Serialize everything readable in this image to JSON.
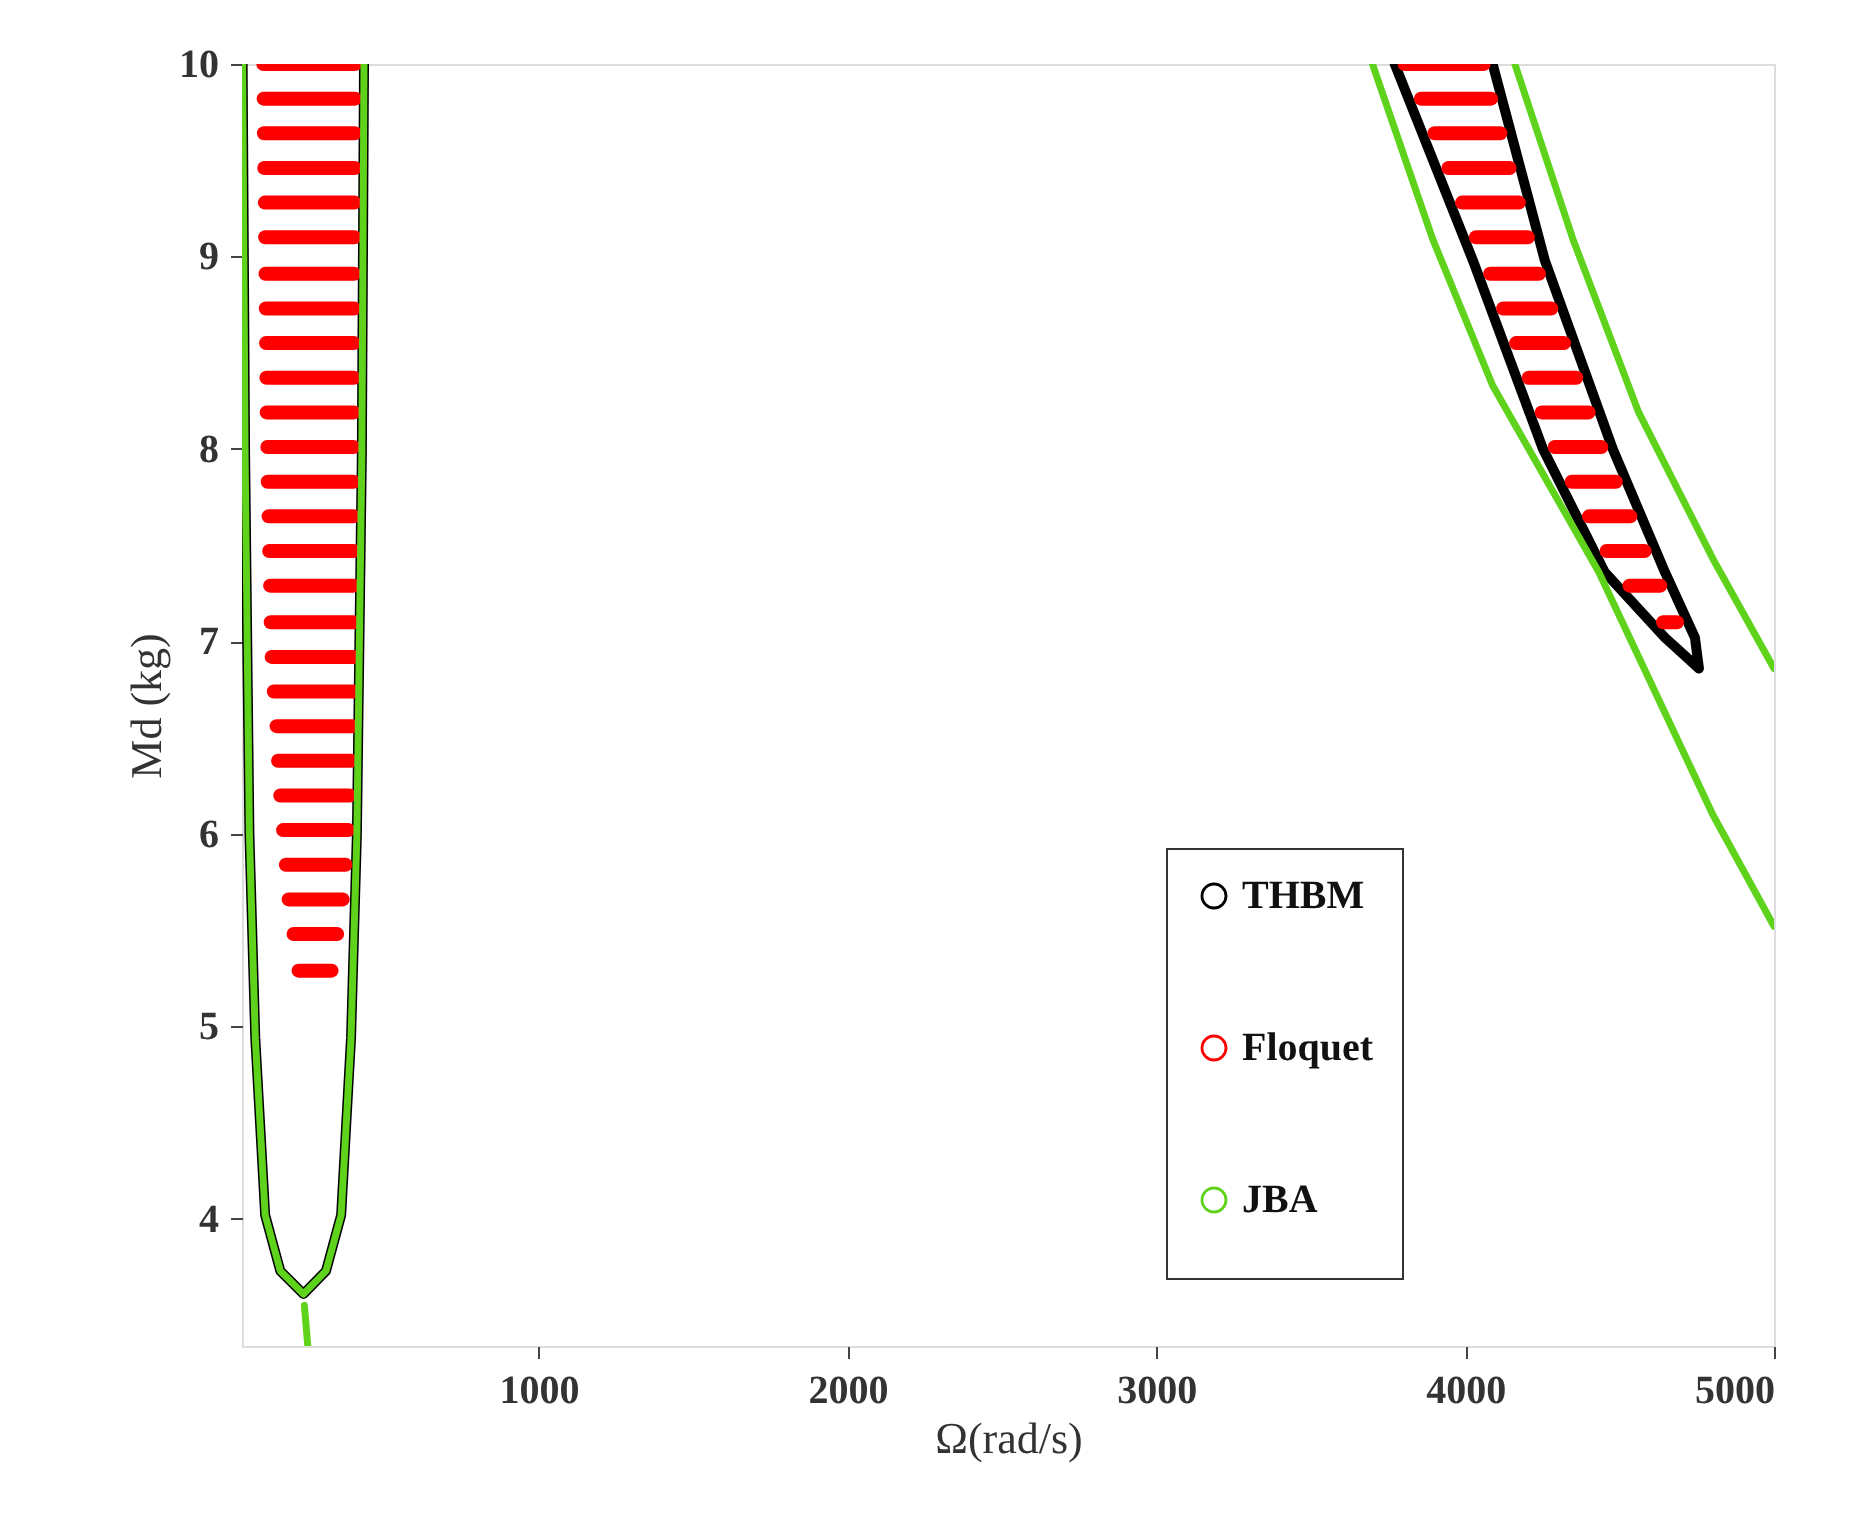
{
  "chart_data": {
    "type": "line",
    "xlabel": "Ω(rad/s)",
    "ylabel": "Md (kg)",
    "xlim": [
      40,
      5000
    ],
    "ylim": [
      3.34,
      10
    ],
    "xticks": [
      1000,
      2000,
      3000,
      4000,
      5000
    ],
    "yticks": [
      4,
      5,
      6,
      7,
      8,
      9,
      10
    ],
    "legend": "bottom right",
    "series": [
      {
        "name": "THBM",
        "color": "#000000",
        "x": [
          42,
          50,
          64,
          83,
          115,
          164,
          239,
          312,
          361,
          393,
          412,
          428,
          435,
          null,
          3772,
          4025,
          4252,
          4452,
          4647,
          4757,
          4744,
          4647,
          4478,
          4258,
          4089
        ],
        "values": [
          10,
          7.97,
          6.0,
          4.94,
          4.02,
          3.73,
          3.61,
          3.73,
          4.02,
          4.94,
          6.0,
          7.97,
          10,
          null,
          10,
          8.98,
          8.0,
          7.36,
          7.02,
          6.86,
          7.02,
          7.36,
          8.0,
          8.98,
          10
        ]
      },
      {
        "name": "Floquet",
        "color": "#ff0000",
        "x": [
          109,
          406
        ],
        "values": [
          10,
          10
        ]
      },
      {
        "color": "#ff0000",
        "x": [
          110,
          406
        ],
        "values": [
          9.82,
          9.82
        ]
      },
      {
        "color": "#ff0000",
        "x": [
          111,
          405
        ],
        "values": [
          9.64,
          9.64
        ]
      },
      {
        "color": "#ff0000",
        "x": [
          112,
          405
        ],
        "values": [
          9.46,
          9.46
        ]
      },
      {
        "color": "#ff0000",
        "x": [
          114,
          404
        ],
        "values": [
          9.28,
          9.28
        ]
      },
      {
        "color": "#ff0000",
        "x": [
          115,
          404
        ],
        "values": [
          9.1,
          9.1
        ]
      },
      {
        "color": "#ff0000",
        "x": [
          116,
          403
        ],
        "values": [
          8.91,
          8.91
        ]
      },
      {
        "color": "#ff0000",
        "x": [
          117,
          403
        ],
        "values": [
          8.73,
          8.73
        ]
      },
      {
        "color": "#ff0000",
        "x": [
          118,
          402
        ],
        "values": [
          8.55,
          8.55
        ]
      },
      {
        "color": "#ff0000",
        "x": [
          119,
          402
        ],
        "values": [
          8.37,
          8.37
        ]
      },
      {
        "color": "#ff0000",
        "x": [
          120,
          402
        ],
        "values": [
          8.19,
          8.19
        ]
      },
      {
        "color": "#ff0000",
        "x": [
          122,
          401
        ],
        "values": [
          8.01,
          8.01
        ]
      },
      {
        "color": "#ff0000",
        "x": [
          123,
          401
        ],
        "values": [
          7.83,
          7.83
        ]
      },
      {
        "color": "#ff0000",
        "x": [
          126,
          401
        ],
        "values": [
          7.65,
          7.65
        ]
      },
      {
        "color": "#ff0000",
        "x": [
          128,
          401
        ],
        "values": [
          7.47,
          7.47
        ]
      },
      {
        "color": "#ff0000",
        "x": [
          131,
          401
        ],
        "values": [
          7.29,
          7.29
        ]
      },
      {
        "color": "#ff0000",
        "x": [
          133,
          401
        ],
        "values": [
          7.1,
          7.1
        ]
      },
      {
        "color": "#ff0000",
        "x": [
          136,
          401
        ],
        "values": [
          6.92,
          6.92
        ]
      },
      {
        "color": "#ff0000",
        "x": [
          143,
          401
        ],
        "values": [
          6.74,
          6.74
        ]
      },
      {
        "color": "#ff0000",
        "x": [
          152,
          397
        ],
        "values": [
          6.56,
          6.56
        ]
      },
      {
        "color": "#ff0000",
        "x": [
          157,
          393
        ],
        "values": [
          6.38,
          6.38
        ]
      },
      {
        "color": "#ff0000",
        "x": [
          164,
          388
        ],
        "values": [
          6.2,
          6.2
        ]
      },
      {
        "color": "#ff0000",
        "x": [
          173,
          384
        ],
        "values": [
          6.02,
          6.02
        ]
      },
      {
        "color": "#ff0000",
        "x": [
          182,
          375
        ],
        "values": [
          5.84,
          5.84
        ]
      },
      {
        "color": "#ff0000",
        "x": [
          191,
          366
        ],
        "values": [
          5.66,
          5.66
        ]
      },
      {
        "color": "#ff0000",
        "x": [
          207,
          348
        ],
        "values": [
          5.48,
          5.48
        ]
      },
      {
        "color": "#ff0000",
        "x": [
          223,
          330
        ],
        "values": [
          5.29,
          5.29
        ]
      },
      {
        "color": "#ff0000",
        "x": [
          3804,
          4060
        ],
        "values": [
          10,
          10
        ]
      },
      {
        "color": "#ff0000",
        "x": [
          3857,
          4084
        ],
        "values": [
          9.82,
          9.82
        ]
      },
      {
        "color": "#ff0000",
        "x": [
          3901,
          4114
        ],
        "values": [
          9.64,
          9.64
        ]
      },
      {
        "color": "#ff0000",
        "x": [
          3946,
          4144
        ],
        "values": [
          9.46,
          9.46
        ]
      },
      {
        "color": "#ff0000",
        "x": [
          3990,
          4174
        ],
        "values": [
          9.28,
          9.28
        ]
      },
      {
        "color": "#ff0000",
        "x": [
          4035,
          4203
        ],
        "values": [
          9.1,
          9.1
        ]
      },
      {
        "color": "#ff0000",
        "x": [
          4081,
          4239
        ],
        "values": [
          8.91,
          8.91
        ]
      },
      {
        "color": "#ff0000",
        "x": [
          4123,
          4279
        ],
        "values": [
          8.73,
          8.73
        ]
      },
      {
        "color": "#ff0000",
        "x": [
          4165,
          4320
        ],
        "values": [
          8.55,
          8.55
        ]
      },
      {
        "color": "#ff0000",
        "x": [
          4206,
          4360
        ],
        "values": [
          8.37,
          8.37
        ]
      },
      {
        "color": "#ff0000",
        "x": [
          4248,
          4400
        ],
        "values": [
          8.19,
          8.19
        ]
      },
      {
        "color": "#ff0000",
        "x": [
          4290,
          4441
        ],
        "values": [
          8.01,
          8.01
        ]
      },
      {
        "color": "#ff0000",
        "x": [
          4345,
          4488
        ],
        "values": [
          7.83,
          7.83
        ]
      },
      {
        "color": "#ff0000",
        "x": [
          4401,
          4535
        ],
        "values": [
          7.65,
          7.65
        ]
      },
      {
        "color": "#ff0000",
        "x": [
          4458,
          4581
        ],
        "values": [
          7.47,
          7.47
        ]
      },
      {
        "color": "#ff0000",
        "x": [
          4532,
          4632
        ],
        "values": [
          7.29,
          7.29
        ]
      },
      {
        "color": "#ff0000",
        "x": [
          4641,
          4686
        ],
        "values": [
          7.1,
          7.1
        ]
      },
      {
        "name": "JBA",
        "color": "#5fd31c",
        "x": [
          42,
          50,
          64,
          83,
          115,
          164,
          239,
          312,
          361,
          393,
          412,
          428,
          435,
          null,
          242,
          253,
          null,
          3700,
          3895,
          4089,
          4433,
          4802,
          5000,
          null,
          4161,
          4349,
          4562,
          4802,
          5000
        ],
        "values": [
          10,
          7.97,
          6.0,
          4.94,
          4.02,
          3.73,
          3.61,
          3.73,
          4.02,
          4.94,
          6.0,
          7.97,
          10,
          null,
          3.55,
          3.34,
          null,
          10,
          9.09,
          8.33,
          7.36,
          6.1,
          5.52,
          null,
          10,
          9.09,
          8.19,
          7.43,
          6.86
        ]
      }
    ]
  }
}
